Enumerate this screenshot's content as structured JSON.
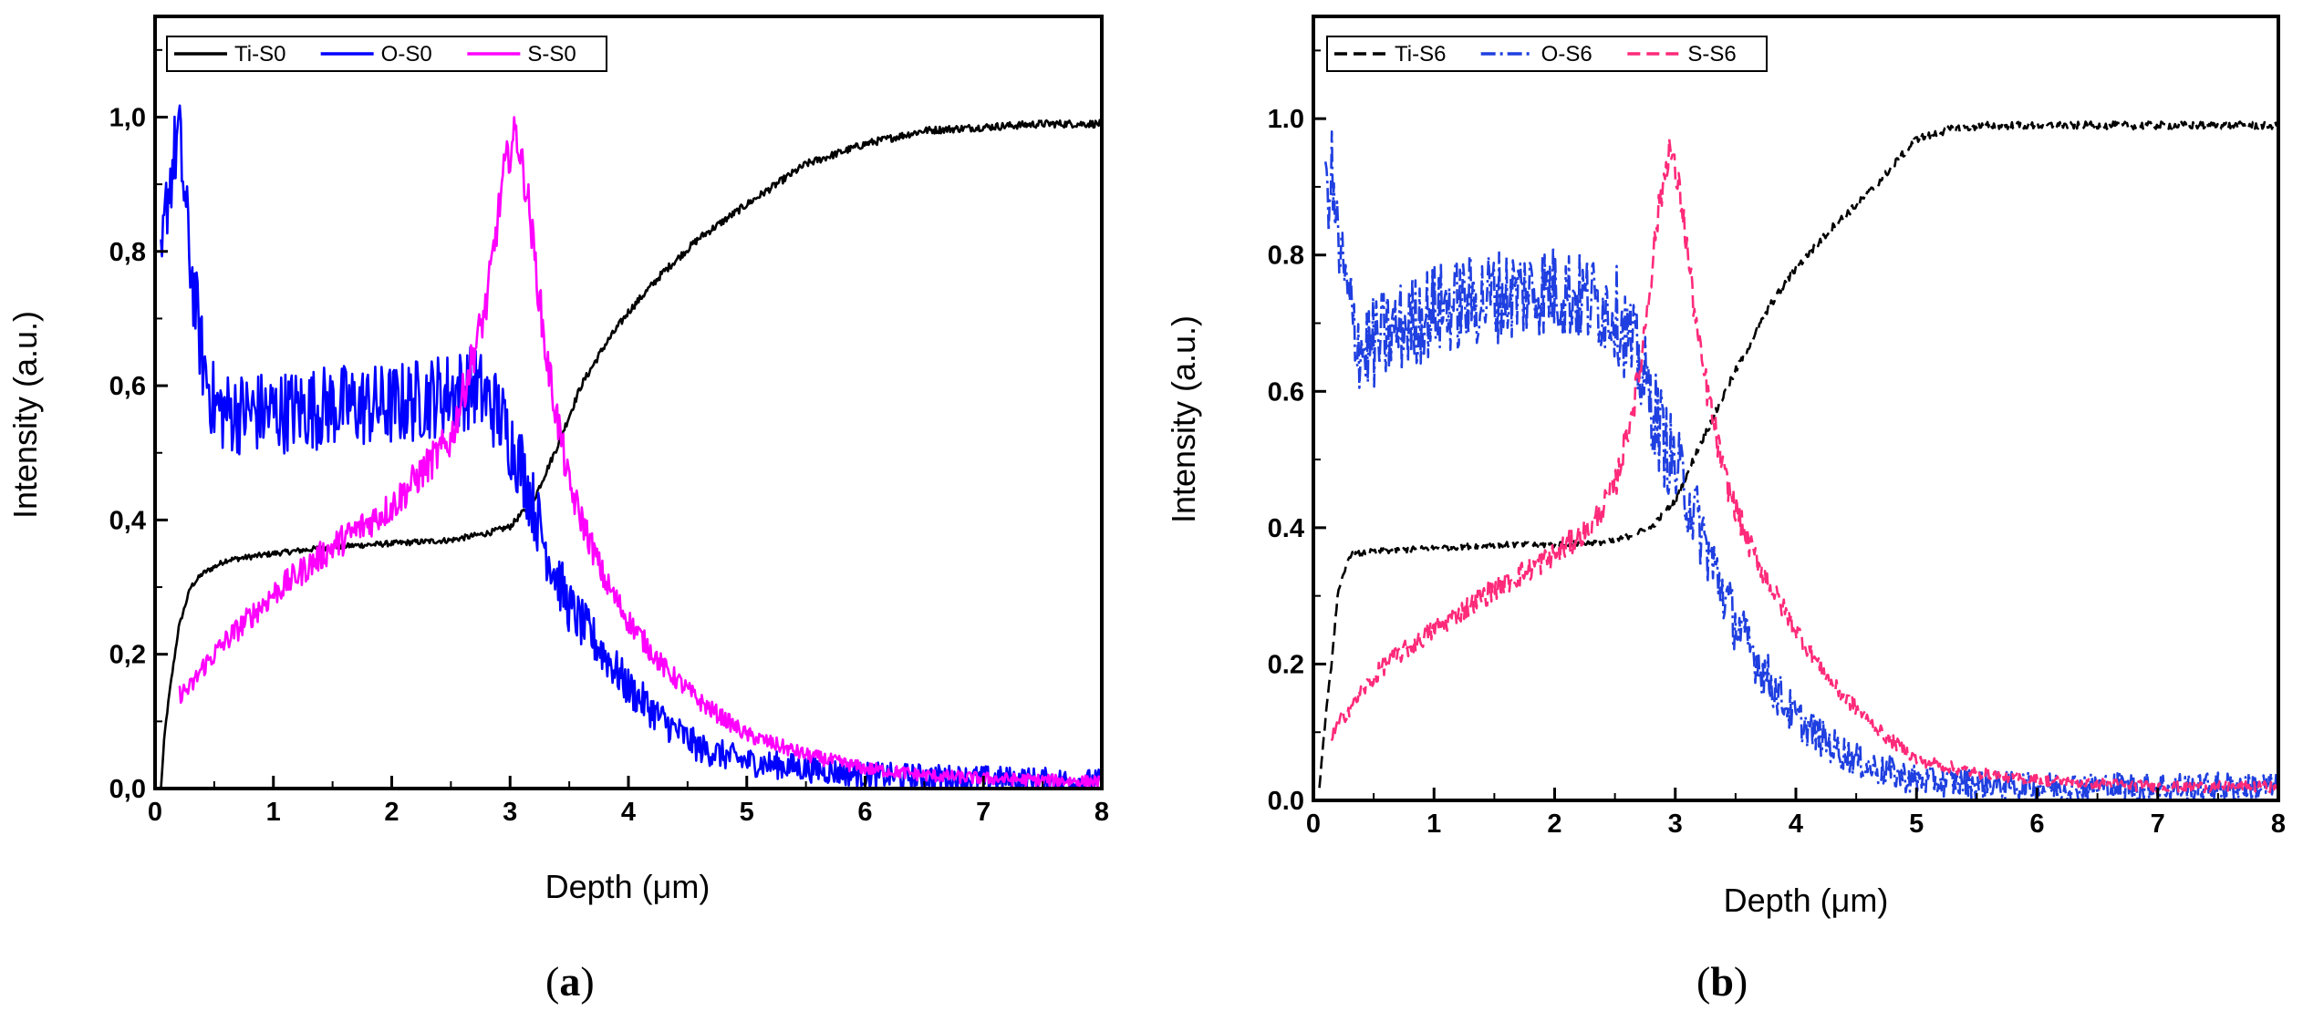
{
  "chart_data": [
    {
      "type": "line",
      "panel_label": "(a)",
      "panel_letter": "a",
      "xlabel": "Depth (μm)",
      "ylabel": "Intensity (a.u.)",
      "xlim": [
        0,
        8
      ],
      "ylim": [
        0,
        1.15
      ],
      "xticks": [
        0,
        1,
        2,
        3,
        4,
        5,
        6,
        7,
        8
      ],
      "yticks": [
        0.0,
        0.2,
        0.4,
        0.6,
        0.8,
        1.0
      ],
      "ytick_labels": [
        "0,0",
        "0,2",
        "0,4",
        "0,6",
        "0,8",
        "1,0"
      ],
      "xtick_labels": [
        "0",
        "1",
        "2",
        "3",
        "4",
        "5",
        "6",
        "7",
        "8"
      ],
      "legend": [
        "Ti-S0",
        "O-S0",
        "S-S0"
      ],
      "legend_position": "top-left",
      "series": [
        {
          "name": "Ti-S0",
          "color": "#000000",
          "dash": "solid",
          "noise": 0.004,
          "x": [
            0.05,
            0.08,
            0.12,
            0.2,
            0.3,
            0.4,
            0.6,
            1.0,
            1.5,
            2.0,
            2.5,
            2.8,
            3.0,
            3.2,
            3.4,
            3.6,
            3.8,
            4.0,
            4.3,
            4.6,
            5.0,
            5.5,
            6.0,
            6.5,
            7.0,
            7.5,
            8.0
          ],
          "y": [
            0.0,
            0.08,
            0.14,
            0.24,
            0.3,
            0.32,
            0.34,
            0.35,
            0.36,
            0.365,
            0.37,
            0.38,
            0.39,
            0.43,
            0.51,
            0.6,
            0.66,
            0.71,
            0.77,
            0.82,
            0.87,
            0.93,
            0.96,
            0.98,
            0.985,
            0.99,
            0.99
          ]
        },
        {
          "name": "O-S0",
          "color": "#0000ff",
          "dash": "solid",
          "noise": 0.045,
          "x": [
            0.05,
            0.1,
            0.2,
            0.3,
            0.4,
            0.5,
            0.6,
            1.0,
            1.5,
            2.0,
            2.5,
            2.7,
            2.9,
            3.1,
            3.3,
            3.5,
            3.8,
            4.0,
            4.3,
            4.6,
            5.0,
            5.5,
            6.0,
            7.0,
            8.0
          ],
          "y": [
            0.76,
            0.88,
            0.98,
            0.78,
            0.64,
            0.57,
            0.56,
            0.56,
            0.57,
            0.57,
            0.59,
            0.6,
            0.56,
            0.48,
            0.36,
            0.27,
            0.2,
            0.15,
            0.1,
            0.06,
            0.04,
            0.03,
            0.02,
            0.015,
            0.01
          ]
        },
        {
          "name": "S-S0",
          "color": "#ff00ff",
          "dash": "solid",
          "noise": 0.022,
          "x": [
            0.2,
            0.3,
            0.4,
            0.6,
            1.0,
            1.5,
            2.0,
            2.5,
            2.8,
            2.95,
            3.05,
            3.15,
            3.3,
            3.5,
            3.8,
            4.0,
            4.3,
            4.6,
            5.0,
            5.5,
            6.0,
            6.5,
            7.0,
            8.0
          ],
          "y": [
            0.14,
            0.15,
            0.18,
            0.22,
            0.29,
            0.36,
            0.42,
            0.52,
            0.72,
            0.92,
            0.98,
            0.88,
            0.65,
            0.45,
            0.31,
            0.25,
            0.18,
            0.13,
            0.08,
            0.05,
            0.03,
            0.02,
            0.015,
            0.01
          ]
        }
      ]
    },
    {
      "type": "line",
      "panel_label": "(b)",
      "panel_letter": "b",
      "xlabel": "Depth (μm)",
      "ylabel": "Intensity (a.u.)",
      "xlim": [
        0,
        8
      ],
      "ylim": [
        0,
        1.15
      ],
      "xticks": [
        0,
        1,
        2,
        3,
        4,
        5,
        6,
        7,
        8
      ],
      "yticks": [
        0.0,
        0.2,
        0.4,
        0.6,
        0.8,
        1.0
      ],
      "ytick_labels": [
        "0.0",
        "0.2",
        "0.4",
        "0.6",
        "0.8",
        "1.0"
      ],
      "xtick_labels": [
        "0",
        "1",
        "2",
        "3",
        "4",
        "5",
        "6",
        "7",
        "8"
      ],
      "legend": [
        "Ti-S6",
        "O-S6",
        "S-S6"
      ],
      "legend_position": "top-left",
      "series": [
        {
          "name": "Ti-S6",
          "color": "#000000",
          "dash": "dashed",
          "noise": 0.004,
          "x": [
            0.05,
            0.1,
            0.15,
            0.2,
            0.3,
            0.5,
            1.0,
            1.5,
            2.0,
            2.5,
            2.8,
            3.0,
            3.2,
            3.5,
            3.8,
            4.0,
            4.3,
            4.6,
            4.8,
            5.0,
            5.3,
            5.6,
            6.0,
            7.0,
            8.0
          ],
          "y": [
            0.02,
            0.12,
            0.2,
            0.3,
            0.36,
            0.365,
            0.37,
            0.375,
            0.375,
            0.38,
            0.4,
            0.44,
            0.52,
            0.63,
            0.73,
            0.78,
            0.84,
            0.89,
            0.93,
            0.97,
            0.985,
            0.99,
            0.99,
            0.99,
            0.99
          ]
        },
        {
          "name": "O-S6",
          "color": "#1f3fe0",
          "dash": "dashdot",
          "noise": 0.05,
          "x": [
            0.1,
            0.15,
            0.2,
            0.3,
            0.4,
            0.6,
            1.0,
            1.5,
            2.0,
            2.5,
            2.7,
            2.9,
            3.1,
            3.3,
            3.5,
            3.8,
            4.0,
            4.3,
            4.6,
            5.0,
            5.5,
            6.0,
            7.0,
            8.0
          ],
          "y": [
            0.88,
            0.92,
            0.82,
            0.72,
            0.66,
            0.68,
            0.72,
            0.74,
            0.75,
            0.72,
            0.64,
            0.53,
            0.45,
            0.35,
            0.26,
            0.17,
            0.12,
            0.08,
            0.05,
            0.03,
            0.025,
            0.02,
            0.02,
            0.02
          ]
        },
        {
          "name": "S-S6",
          "color": "#ff2a7a",
          "dash": "dashed",
          "noise": 0.018,
          "x": [
            0.15,
            0.2,
            0.4,
            0.6,
            1.0,
            1.5,
            2.0,
            2.3,
            2.5,
            2.7,
            2.85,
            2.95,
            3.05,
            3.2,
            3.4,
            3.6,
            3.8,
            4.0,
            4.3,
            4.7,
            5.0,
            5.5,
            6.0,
            7.0,
            8.0
          ],
          "y": [
            0.09,
            0.11,
            0.16,
            0.2,
            0.25,
            0.31,
            0.36,
            0.4,
            0.46,
            0.62,
            0.85,
            0.96,
            0.88,
            0.66,
            0.48,
            0.38,
            0.31,
            0.25,
            0.17,
            0.1,
            0.06,
            0.04,
            0.03,
            0.02,
            0.02
          ]
        }
      ]
    }
  ]
}
